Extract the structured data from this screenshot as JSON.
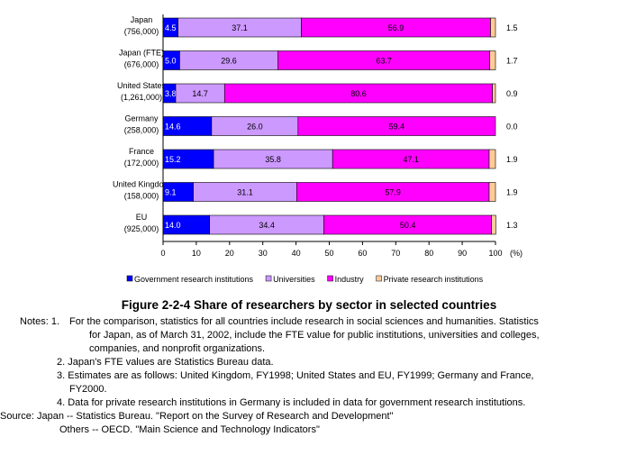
{
  "chart_data": {
    "type": "bar",
    "orientation": "horizontal",
    "stacked": true,
    "categories": [
      [
        "Japan",
        "(756,000)"
      ],
      [
        "Japan (FTE)",
        "(676,000)"
      ],
      [
        "United States",
        "(1,261,000)"
      ],
      [
        "Germany",
        "(258,000)"
      ],
      [
        "France",
        "(172,000)"
      ],
      [
        "United Kingdom",
        "(158,000)"
      ],
      [
        "EU",
        "(925,000)"
      ]
    ],
    "series": [
      {
        "name": "Government research institutions",
        "color": "#0000ff",
        "values": [
          4.5,
          5.0,
          3.8,
          14.6,
          15.2,
          9.1,
          14.0
        ],
        "labels": [
          "4.5",
          "5.0",
          "3.8",
          "14.6",
          "15.2",
          "9.1",
          "14.0"
        ]
      },
      {
        "name": "Universities",
        "color": "#cc99ff",
        "values": [
          37.1,
          29.6,
          14.7,
          26.0,
          35.8,
          31.1,
          34.4
        ],
        "labels": [
          "37.1",
          "29.6",
          "14.7",
          "26.0",
          "35.8",
          "31.1",
          "34.4"
        ]
      },
      {
        "name": "Industry",
        "color": "#ff00ff",
        "values": [
          56.9,
          63.7,
          80.6,
          59.4,
          47.1,
          57.9,
          50.4
        ],
        "labels": [
          "56.9",
          "63.7",
          "80.6",
          "59.4",
          "47.1",
          "57.9",
          "50.4"
        ]
      },
      {
        "name": "Private research institutions",
        "color": "#ffcc99",
        "values": [
          1.5,
          1.7,
          0.9,
          0.0,
          1.9,
          1.9,
          1.3
        ],
        "labels": [
          "1.5",
          "1.7",
          "0.9",
          "0.0",
          "1.9",
          "1.9",
          "1.3"
        ]
      }
    ],
    "xlim": [
      0,
      100
    ],
    "xticks": [
      "0",
      "10",
      "20",
      "30",
      "40",
      "50",
      "60",
      "70",
      "80",
      "90",
      "100"
    ],
    "xunit": "(%)",
    "grid": false,
    "legend_position": "bottom"
  },
  "figure": {
    "title": "Figure 2-2-4  Share of researchers by sector in selected countries"
  },
  "notes": {
    "head": "Notes: 1.",
    "n1_line1": "For the comparison, statistics for all countries include research in social sciences and humanities. Statistics",
    "n1_line2": "for Japan, as of March 31, 2002, include the FTE value for public institutions, universities and colleges,",
    "n1_line3": "companies, and nonprofit organizations.",
    "n2": "2. Japan's FTE values are Statistics Bureau data.",
    "n3_line1": "3. Estimates are as follows: United Kingdom, FY1998; United States and EU, FY1999; Germany and France,",
    "n3_line2": "FY2000.",
    "n4": "4. Data for private research institutions in Germany is included in data for government research institutions.",
    "source_head": "Source:",
    "source_1": "Japan -- Statistics Bureau. \"Report on the Survey of Research and Development\"",
    "source_2": "Others -- OECD. \"Main Science and Technology Indicators\""
  }
}
